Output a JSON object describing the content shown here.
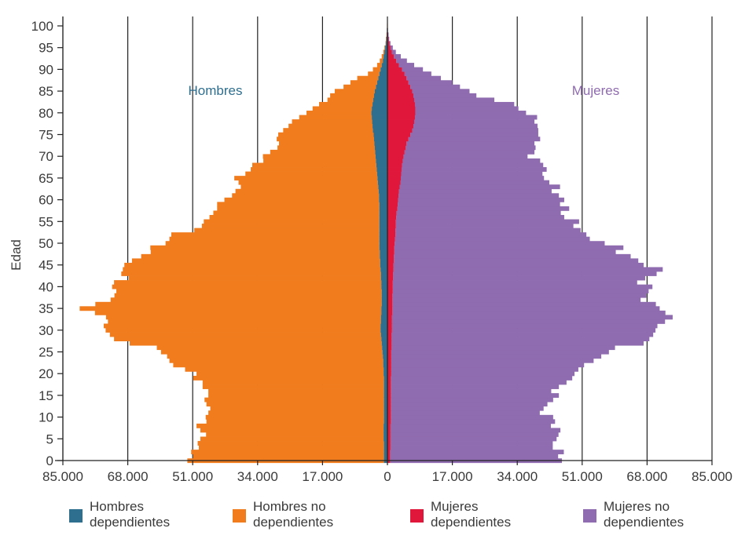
{
  "chart_data": {
    "type": "bar",
    "orientation": "horizontal",
    "layout": "population-pyramid",
    "ylabel": "Edad",
    "xlim": [
      -85000,
      85000
    ],
    "ylim": [
      0,
      100
    ],
    "x_ticks": [
      "85.000",
      "68.000",
      "51.000",
      "34.000",
      "17.000",
      "0",
      "17.000",
      "34.000",
      "51.000",
      "68.000",
      "85.000"
    ],
    "y_ticks": [
      "0",
      "5",
      "10",
      "15",
      "20",
      "25",
      "30",
      "35",
      "40",
      "45",
      "50",
      "55",
      "60",
      "65",
      "70",
      "75",
      "80",
      "85",
      "90",
      "95",
      "100"
    ],
    "annotations": {
      "left": "Hombres",
      "right": "Mujeres"
    },
    "grid": "vertical",
    "legend_position": "bottom",
    "ages": [
      0,
      1,
      2,
      3,
      4,
      5,
      6,
      7,
      8,
      9,
      10,
      11,
      12,
      13,
      14,
      15,
      16,
      17,
      18,
      19,
      20,
      21,
      22,
      23,
      24,
      25,
      26,
      27,
      28,
      29,
      30,
      31,
      32,
      33,
      34,
      35,
      36,
      37,
      38,
      39,
      40,
      41,
      42,
      43,
      44,
      45,
      46,
      47,
      48,
      49,
      50,
      51,
      52,
      53,
      54,
      55,
      56,
      57,
      58,
      59,
      60,
      61,
      62,
      63,
      64,
      65,
      66,
      67,
      68,
      69,
      70,
      71,
      72,
      73,
      74,
      75,
      76,
      77,
      78,
      79,
      80,
      81,
      82,
      83,
      84,
      85,
      86,
      87,
      88,
      89,
      90,
      91,
      92,
      93,
      94,
      95,
      96,
      97,
      98,
      99,
      100
    ],
    "series": [
      {
        "name": "Hombres dependientes",
        "side": "left",
        "color": "#2e6e8e",
        "values": [
          900,
          900,
          900,
          900,
          900,
          1000,
          1000,
          1000,
          1000,
          900,
          900,
          900,
          900,
          900,
          900,
          900,
          900,
          900,
          900,
          900,
          1000,
          1000,
          1100,
          1100,
          1200,
          1300,
          1400,
          1500,
          1600,
          1700,
          1800,
          1800,
          1700,
          1700,
          1600,
          1600,
          1500,
          1500,
          1500,
          1500,
          1600,
          1600,
          1700,
          1700,
          1800,
          1900,
          1900,
          2000,
          2000,
          2100,
          2100,
          2100,
          2100,
          2100,
          2100,
          2100,
          2100,
          2100,
          2100,
          2100,
          2200,
          2200,
          2300,
          2400,
          2500,
          2600,
          2700,
          2800,
          2900,
          3000,
          3100,
          3200,
          3300,
          3400,
          3500,
          3600,
          3800,
          3900,
          4000,
          4100,
          4200,
          4100,
          3900,
          3700,
          3500,
          3300,
          3000,
          2700,
          2400,
          2100,
          1800,
          1500,
          1200,
          1000,
          800,
          600,
          400,
          300,
          200,
          150,
          100
        ]
      },
      {
        "name": "Hombres no dependientes",
        "side": "left",
        "color": "#f07c1e",
        "values": [
          51500,
          50000,
          50500,
          48500,
          48800,
          48000,
          46500,
          48000,
          49000,
          46500,
          46700,
          46000,
          45500,
          46500,
          47000,
          46000,
          46000,
          47500,
          47500,
          50000,
          49000,
          52000,
          55000,
          56000,
          56500,
          58000,
          59000,
          66000,
          70000,
          71000,
          72000,
          72500,
          71500,
          72000,
          75000,
          79000,
          75000,
          71000,
          70000,
          69500,
          70500,
          70000,
          66000,
          68000,
          67500,
          67000,
          65000,
          62500,
          60000,
          60000,
          56000,
          55000,
          54500,
          48500,
          46500,
          46000,
          44500,
          43500,
          42500,
          42500,
          40500,
          38500,
          37500,
          36000,
          36500,
          37500,
          34500,
          33000,
          32500,
          29500,
          29500,
          27500,
          25500,
          25000,
          25500,
          25000,
          23500,
          22000,
          21000,
          19000,
          17000,
          15500,
          14000,
          12000,
          11500,
          10500,
          8500,
          7000,
          5500,
          3000,
          2000,
          1200,
          800,
          500,
          300,
          200,
          100,
          100,
          50,
          50,
          20
        ]
      },
      {
        "name": "Mujeres dependientes",
        "side": "right",
        "color": "#e0173a",
        "values": [
          700,
          700,
          700,
          800,
          800,
          800,
          800,
          800,
          800,
          900,
          900,
          900,
          900,
          900,
          900,
          900,
          900,
          900,
          900,
          900,
          1000,
          1000,
          1000,
          1000,
          1000,
          1000,
          1100,
          1100,
          1100,
          1100,
          1200,
          1200,
          1200,
          1200,
          1300,
          1300,
          1300,
          1300,
          1300,
          1400,
          1400,
          1400,
          1500,
          1500,
          1600,
          1600,
          1700,
          1700,
          1800,
          1800,
          1900,
          2000,
          2100,
          2100,
          2200,
          2200,
          2300,
          2400,
          2600,
          2700,
          2800,
          2900,
          3000,
          3200,
          3400,
          3500,
          3600,
          3700,
          3800,
          4000,
          4200,
          4500,
          4800,
          5000,
          5500,
          6000,
          6500,
          6800,
          7000,
          7200,
          7300,
          7300,
          7200,
          7000,
          6800,
          6500,
          6000,
          5500,
          5000,
          4500,
          3800,
          3000,
          2300,
          1700,
          1200,
          800,
          500,
          300,
          200,
          100,
          50
        ]
      },
      {
        "name": "Mujeres no dependientes",
        "side": "right",
        "color": "#8f6baf",
        "values": [
          45000,
          44000,
          45500,
          42500,
          42500,
          43500,
          44000,
          44500,
          42000,
          43000,
          42500,
          39000,
          40000,
          41000,
          42500,
          44000,
          42000,
          44000,
          46000,
          47500,
          48000,
          49000,
          50500,
          53000,
          55000,
          57000,
          58500,
          66000,
          67500,
          68500,
          69000,
          69500,
          71500,
          73500,
          71500,
          70000,
          69000,
          65000,
          66500,
          67000,
          68000,
          64000,
          66000,
          69000,
          70500,
          65500,
          64000,
          62000,
          58000,
          60000,
          55000,
          51000,
          50000,
          48500,
          46500,
          48000,
          44000,
          43000,
          45000,
          42500,
          43500,
          42000,
          40000,
          42000,
          39000,
          37500,
          37000,
          38000,
          37000,
          36000,
          32500,
          34000,
          34000,
          33500,
          34500,
          33500,
          33000,
          32500,
          31500,
          32000,
          29000,
          27000,
          26000,
          21000,
          16500,
          15000,
          13000,
          11500,
          9000,
          7000,
          5500,
          4000,
          2800,
          1800,
          1000,
          600,
          300,
          150,
          100,
          50,
          20
        ]
      }
    ]
  }
}
